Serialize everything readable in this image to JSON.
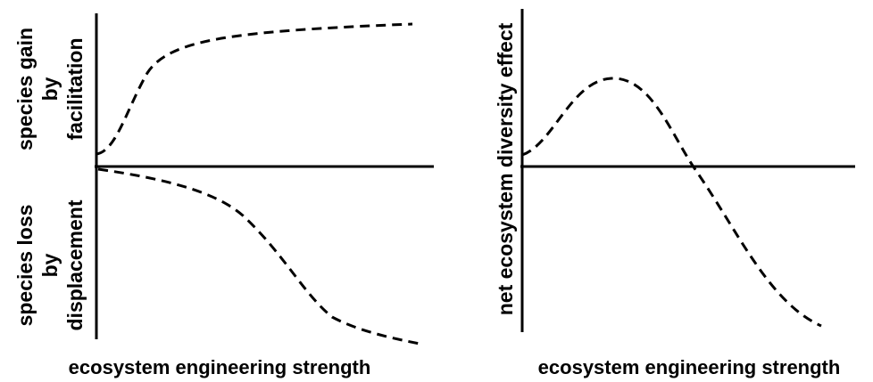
{
  "panels": [
    {
      "y_label_upper": [
        "species gain",
        "by",
        "facilitation"
      ],
      "y_label_lower": [
        "species loss",
        "by",
        "displacement"
      ],
      "x_label": "ecosystem engineering strength"
    },
    {
      "y_label": "net ecosystem diversity effect",
      "x_label": "ecosystem engineering strength"
    }
  ]
}
